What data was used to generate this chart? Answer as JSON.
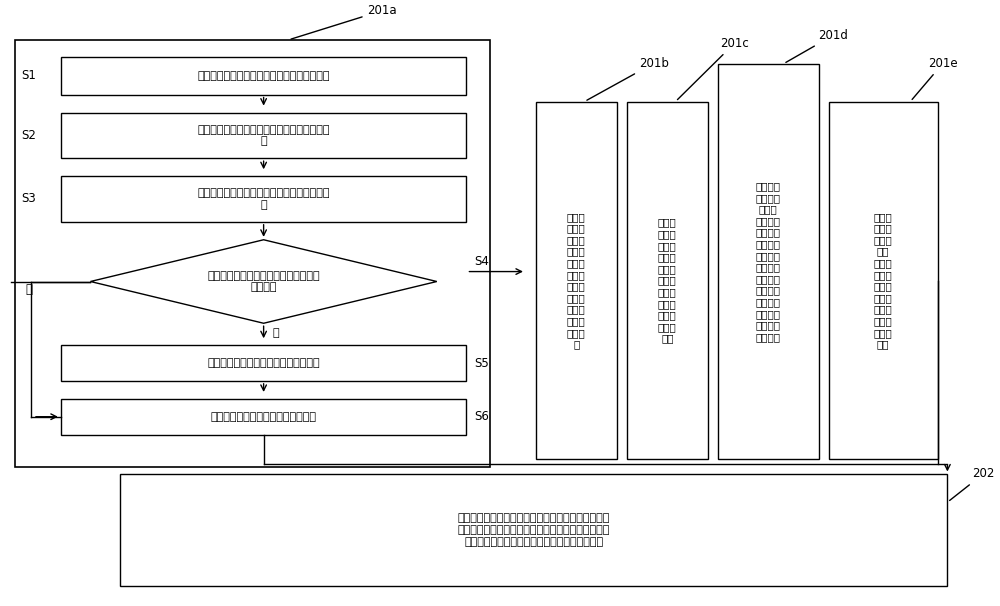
{
  "bg_color": "#ffffff",
  "label_201a": "201a",
  "label_201b": "201b",
  "label_201c": "201c",
  "label_201d": "201d",
  "label_201e": "201e",
  "label_202": "202",
  "s1": "S1",
  "s2": "S2",
  "s3": "S3",
  "s4": "S4",
  "s5": "S5",
  "s6": "S6",
  "box1": "通过探测装置对肤质区域的血液情况进行采集",
  "box2": "根据血液情况生成相对应的肤质区域的成像图像",
  "box3": "通过成像图像分析出与之相对应的血流分布信息",
  "diamond": "判断血流分布信息是否属于预置血流信息范围内",
  "no_lbl": "否",
  "yes_lbl": "是",
  "box5": "确定肤质区域的气血状况信息属于正常",
  "box6": "将判断血流分布信息的判断结果保存",
  "box_b": "肤色信息采集步骤：通过窄波光谱方式确定肤质区域的血红素和黑色素的含量",
  "box_c": "肤质信息采集步骤：通过吸力和拉伸相互作用的方式确定肤质区域弹性值",
  "box_d": "皮肤水润信息采集步骤：通过皮肤水分电容测试方式确定肤质区域的含水量，并获取油脂测试设备检测的肤质区域的油脂含量",
  "box_e": "皮肤光泽信息采集步骤：通过镜面光泽度测定方式确定肤质区域的色泽光泽度",
  "box_202": "将采集到的肤色状况信息，肤质弹性信息，皮肤水润信息和色泽光泽度信息与预置指标区间进行比对，并结合气血状况信息，确定肤质区域整体肤质状况"
}
